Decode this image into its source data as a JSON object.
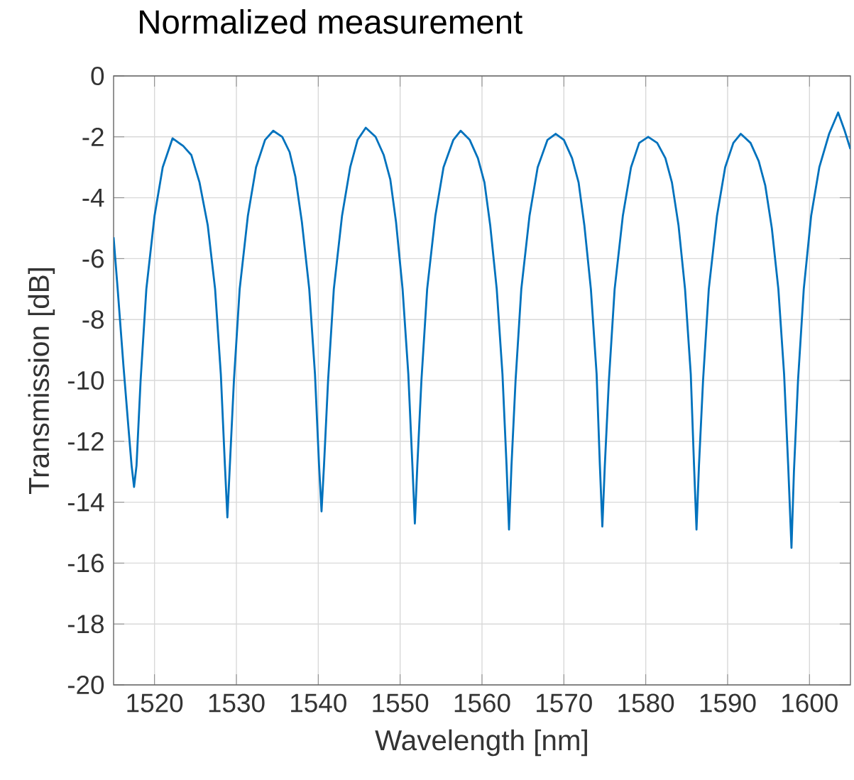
{
  "chart_data": {
    "type": "line",
    "title": "Normalized measurement",
    "xlabel": "Wavelength [nm]",
    "ylabel": "Transmission [dB]",
    "xlim": [
      1515,
      1605
    ],
    "ylim": [
      -20,
      0
    ],
    "xticks": [
      1520,
      1530,
      1540,
      1550,
      1560,
      1570,
      1580,
      1590,
      1600
    ],
    "yticks": [
      -20,
      -18,
      -16,
      -14,
      -12,
      -10,
      -8,
      -6,
      -4,
      -2,
      0
    ],
    "grid": true,
    "marker": "none",
    "line_style": "solid",
    "series": [
      {
        "color": "#0072bd",
        "x": [
          1515.0,
          1515.5,
          1516.2,
          1516.8,
          1517.2,
          1517.5,
          1517.8,
          1518.3,
          1519.0,
          1520.0,
          1521.0,
          1522.2,
          1523.5,
          1524.5,
          1525.5,
          1526.5,
          1527.4,
          1528.1,
          1528.6,
          1528.9,
          1529.2,
          1529.7,
          1530.4,
          1531.4,
          1532.4,
          1533.5,
          1534.5,
          1535.6,
          1536.5,
          1537.2,
          1538.0,
          1538.9,
          1539.6,
          1540.1,
          1540.4,
          1540.7,
          1541.2,
          1541.9,
          1542.9,
          1543.9,
          1544.8,
          1545.8,
          1547.0,
          1548.0,
          1548.8,
          1549.5,
          1550.3,
          1551.0,
          1551.5,
          1551.8,
          1552.1,
          1552.6,
          1553.3,
          1554.3,
          1555.3,
          1556.5,
          1557.4,
          1558.5,
          1559.5,
          1560.3,
          1561.0,
          1561.8,
          1562.5,
          1563.0,
          1563.3,
          1563.6,
          1564.1,
          1564.8,
          1565.8,
          1566.8,
          1568.0,
          1569.0,
          1570.0,
          1571.0,
          1571.8,
          1572.5,
          1573.3,
          1574.0,
          1574.4,
          1574.7,
          1575.0,
          1575.5,
          1576.2,
          1577.2,
          1578.2,
          1579.2,
          1580.3,
          1581.4,
          1582.4,
          1583.2,
          1584.0,
          1584.8,
          1585.5,
          1585.9,
          1586.2,
          1586.5,
          1587.0,
          1587.7,
          1588.7,
          1589.7,
          1590.7,
          1591.6,
          1592.8,
          1593.8,
          1594.6,
          1595.4,
          1596.2,
          1596.9,
          1597.4,
          1597.8,
          1598.1,
          1598.6,
          1599.3,
          1600.2,
          1601.2,
          1602.4,
          1603.5,
          1604.3,
          1605.0
        ],
        "values": [
          -5.3,
          -7.0,
          -9.5,
          -11.5,
          -12.8,
          -13.5,
          -12.8,
          -10.0,
          -7.0,
          -4.6,
          -3.0,
          -2.05,
          -2.3,
          -2.6,
          -3.5,
          -4.9,
          -7.0,
          -9.8,
          -12.8,
          -14.5,
          -12.8,
          -10.0,
          -7.0,
          -4.6,
          -3.0,
          -2.1,
          -1.8,
          -2.0,
          -2.5,
          -3.3,
          -4.8,
          -7.0,
          -9.8,
          -12.8,
          -14.3,
          -12.8,
          -10.0,
          -7.0,
          -4.6,
          -3.0,
          -2.1,
          -1.7,
          -2.0,
          -2.6,
          -3.4,
          -4.8,
          -7.0,
          -9.8,
          -12.8,
          -14.7,
          -12.8,
          -10.0,
          -7.0,
          -4.6,
          -3.0,
          -2.1,
          -1.8,
          -2.1,
          -2.7,
          -3.5,
          -4.9,
          -7.0,
          -9.8,
          -12.8,
          -14.9,
          -12.8,
          -10.0,
          -7.0,
          -4.6,
          -3.0,
          -2.1,
          -1.9,
          -2.1,
          -2.7,
          -3.5,
          -4.9,
          -7.0,
          -9.8,
          -12.8,
          -14.8,
          -12.8,
          -10.0,
          -7.0,
          -4.6,
          -3.0,
          -2.2,
          -2.0,
          -2.2,
          -2.7,
          -3.5,
          -4.9,
          -7.0,
          -9.8,
          -12.8,
          -14.9,
          -12.8,
          -10.0,
          -7.0,
          -4.6,
          -3.0,
          -2.2,
          -1.9,
          -2.2,
          -2.8,
          -3.6,
          -5.0,
          -7.0,
          -9.8,
          -12.8,
          -15.5,
          -13.0,
          -10.0,
          -7.0,
          -4.6,
          -3.0,
          -1.9,
          -1.2,
          -1.8,
          -2.4
        ]
      }
    ]
  }
}
